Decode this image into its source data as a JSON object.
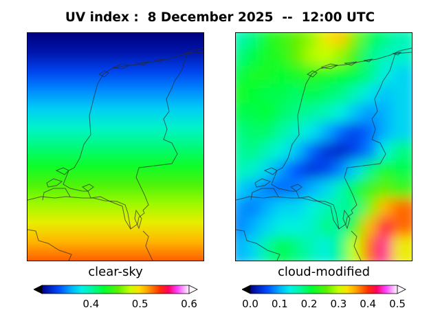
{
  "header": {
    "title": "UV index :  8 December 2025  --  12:00 UTC"
  },
  "chart_data": [
    {
      "type": "heatmap",
      "label": "clear-sky",
      "colormap": "gist_ncar",
      "vmin": 0.3,
      "vmax": 0.6,
      "colorbar_ticks": [
        "0.4",
        "0.5",
        "0.6"
      ],
      "colorbar_tick_values": [
        0.4,
        0.5,
        0.6
      ],
      "rows_north_to_south": [
        0.3,
        0.31,
        0.33,
        0.35,
        0.37,
        0.39,
        0.41,
        0.43,
        0.45,
        0.47,
        0.49,
        0.51,
        0.53
      ]
    },
    {
      "type": "heatmap",
      "label": "cloud-modified",
      "colormap": "gist_ncar",
      "vmin": 0.0,
      "vmax": 0.5,
      "colorbar_ticks": [
        "0.0",
        "0.1",
        "0.2",
        "0.3",
        "0.4",
        "0.5"
      ],
      "colorbar_tick_values": [
        0.0,
        0.1,
        0.2,
        0.3,
        0.4,
        0.5
      ],
      "grid_north_to_south": [
        [
          0.16,
          0.18,
          0.22,
          0.24,
          0.26,
          0.28,
          0.32,
          0.34,
          0.27,
          0.2,
          0.18,
          0.16
        ],
        [
          0.18,
          0.2,
          0.22,
          0.23,
          0.26,
          0.29,
          0.3,
          0.28,
          0.24,
          0.18,
          0.16,
          0.15
        ],
        [
          0.2,
          0.22,
          0.22,
          0.21,
          0.22,
          0.23,
          0.22,
          0.21,
          0.2,
          0.18,
          0.14,
          0.12
        ],
        [
          0.22,
          0.21,
          0.2,
          0.2,
          0.19,
          0.2,
          0.19,
          0.18,
          0.16,
          0.13,
          0.11,
          0.12
        ],
        [
          0.2,
          0.2,
          0.21,
          0.19,
          0.18,
          0.17,
          0.16,
          0.14,
          0.11,
          0.09,
          0.1,
          0.12
        ],
        [
          0.18,
          0.19,
          0.19,
          0.17,
          0.15,
          0.13,
          0.1,
          0.07,
          0.05,
          0.07,
          0.1,
          0.12
        ],
        [
          0.17,
          0.18,
          0.16,
          0.14,
          0.11,
          0.07,
          0.04,
          0.03,
          0.05,
          0.08,
          0.14,
          0.18
        ],
        [
          0.16,
          0.15,
          0.12,
          0.09,
          0.06,
          0.04,
          0.05,
          0.08,
          0.12,
          0.18,
          0.22,
          0.2
        ],
        [
          0.12,
          0.1,
          0.08,
          0.07,
          0.08,
          0.1,
          0.12,
          0.16,
          0.2,
          0.24,
          0.26,
          0.24
        ],
        [
          0.09,
          0.08,
          0.1,
          0.12,
          0.12,
          0.14,
          0.16,
          0.17,
          0.18,
          0.27,
          0.35,
          0.38
        ],
        [
          0.08,
          0.1,
          0.12,
          0.14,
          0.14,
          0.15,
          0.18,
          0.17,
          0.24,
          0.35,
          0.42,
          0.38
        ],
        [
          0.1,
          0.12,
          0.17,
          0.2,
          0.18,
          0.16,
          0.14,
          0.18,
          0.3,
          0.38,
          0.44,
          0.32
        ]
      ]
    }
  ]
}
